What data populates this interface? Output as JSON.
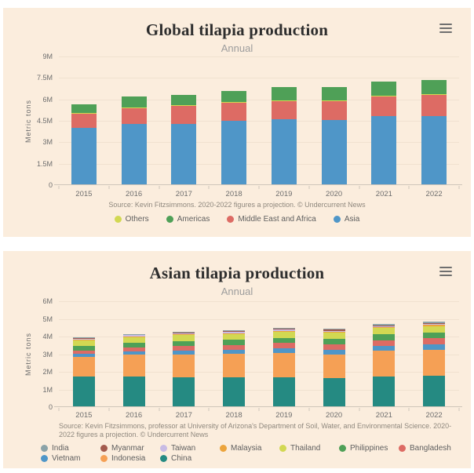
{
  "page": {
    "background_color": "#ffffff",
    "card_background_color": "#fbeddd",
    "context_menu_icon": "hamburger-menu-icon"
  },
  "chart_data": [
    {
      "type": "bar",
      "stacked": true,
      "title": "Global tilapia production",
      "subtitle": "Annual",
      "ylabel": "Metric tons",
      "xlabel": "",
      "unit": "metric tons (millions)",
      "source": "Source: Kevin Fitzsimmons. 2020-2022 figures a projection. © Undercurrent News",
      "grid": true,
      "legend_position": "bottom",
      "ylim": [
        0,
        9
      ],
      "y_ticks": [
        {
          "v": 0,
          "label": "0"
        },
        {
          "v": 1.5,
          "label": "1.5M"
        },
        {
          "v": 3,
          "label": "3M"
        },
        {
          "v": 4.5,
          "label": "4.5M"
        },
        {
          "v": 6,
          "label": "6M"
        },
        {
          "v": 7.5,
          "label": "7.5M"
        },
        {
          "v": 9,
          "label": "9M"
        }
      ],
      "categories": [
        "2015",
        "2016",
        "2017",
        "2018",
        "2019",
        "2020",
        "2021",
        "2022"
      ],
      "series": [
        {
          "name": "Asia",
          "color": "#4f96c8",
          "values": [
            4.0,
            4.3,
            4.3,
            4.5,
            4.6,
            4.55,
            4.85,
            4.85
          ]
        },
        {
          "name": "Middle East and Africa",
          "color": "#dd6b64",
          "values": [
            1.0,
            1.1,
            1.25,
            1.25,
            1.3,
            1.35,
            1.35,
            1.45
          ]
        },
        {
          "name": "Others",
          "color": "#d2d852",
          "values": [
            0.05,
            0.05,
            0.05,
            0.05,
            0.05,
            0.05,
            0.05,
            0.05
          ]
        },
        {
          "name": "Americas",
          "color": "#4fa057",
          "values": [
            0.6,
            0.75,
            0.7,
            0.8,
            0.9,
            0.9,
            1.0,
            1.0
          ]
        }
      ],
      "legend": [
        "Others",
        "Americas",
        "Middle East and Africa",
        "Asia"
      ]
    },
    {
      "type": "bar",
      "stacked": true,
      "title": "Asian tilapia production",
      "subtitle": "Annual",
      "ylabel": "Metric tons",
      "xlabel": "",
      "unit": "metric tons (millions)",
      "source": "Source: Kevin Fitzsimmons, professor at University of Arizona's Department of Soil, Water, and Environmental Science. 2020-2022 figures a projection. © Undercurrent News",
      "grid": true,
      "legend_position": "bottom",
      "ylim": [
        0,
        6
      ],
      "y_ticks": [
        {
          "v": 0,
          "label": "0"
        },
        {
          "v": 1,
          "label": "1M"
        },
        {
          "v": 2,
          "label": "2M"
        },
        {
          "v": 3,
          "label": "3M"
        },
        {
          "v": 4,
          "label": "4M"
        },
        {
          "v": 5,
          "label": "5M"
        },
        {
          "v": 6,
          "label": "6M"
        }
      ],
      "categories": [
        "2015",
        "2016",
        "2017",
        "2018",
        "2019",
        "2020",
        "2021",
        "2022"
      ],
      "series": [
        {
          "name": "China",
          "color": "#258a82",
          "values": [
            1.72,
            1.75,
            1.7,
            1.68,
            1.7,
            1.65,
            1.75,
            1.78
          ]
        },
        {
          "name": "Indonesia",
          "color": "#f5a055",
          "values": [
            1.12,
            1.22,
            1.3,
            1.35,
            1.38,
            1.35,
            1.45,
            1.48
          ]
        },
        {
          "name": "Vietnam",
          "color": "#4f96c8",
          "values": [
            0.18,
            0.2,
            0.22,
            0.22,
            0.25,
            0.25,
            0.27,
            0.28
          ]
        },
        {
          "name": "Bangladesh",
          "color": "#dd6b64",
          "values": [
            0.2,
            0.22,
            0.25,
            0.27,
            0.3,
            0.32,
            0.33,
            0.35
          ]
        },
        {
          "name": "Philippines",
          "color": "#4fa057",
          "values": [
            0.26,
            0.27,
            0.28,
            0.29,
            0.3,
            0.31,
            0.32,
            0.33
          ]
        },
        {
          "name": "Thailand",
          "color": "#d2d852",
          "values": [
            0.3,
            0.32,
            0.33,
            0.34,
            0.35,
            0.35,
            0.36,
            0.37
          ]
        },
        {
          "name": "Malaysia",
          "color": "#eca43c",
          "values": [
            0.04,
            0.04,
            0.05,
            0.05,
            0.05,
            0.05,
            0.06,
            0.06
          ]
        },
        {
          "name": "Taiwan",
          "color": "#c8bbe4",
          "values": [
            0.06,
            0.06,
            0.06,
            0.06,
            0.05,
            0.05,
            0.05,
            0.05
          ]
        },
        {
          "name": "Myanmar",
          "color": "#a35a4d",
          "values": [
            0.03,
            0.03,
            0.04,
            0.04,
            0.05,
            0.05,
            0.05,
            0.05
          ]
        },
        {
          "name": "India",
          "color": "#8ba3a8",
          "values": [
            0.03,
            0.04,
            0.05,
            0.06,
            0.07,
            0.08,
            0.09,
            0.1
          ]
        }
      ],
      "legend": [
        "India",
        "Myanmar",
        "Taiwan",
        "Malaysia",
        "Thailand",
        "Philippines",
        "Bangladesh",
        "Vietnam",
        "Indonesia",
        "China"
      ]
    }
  ]
}
